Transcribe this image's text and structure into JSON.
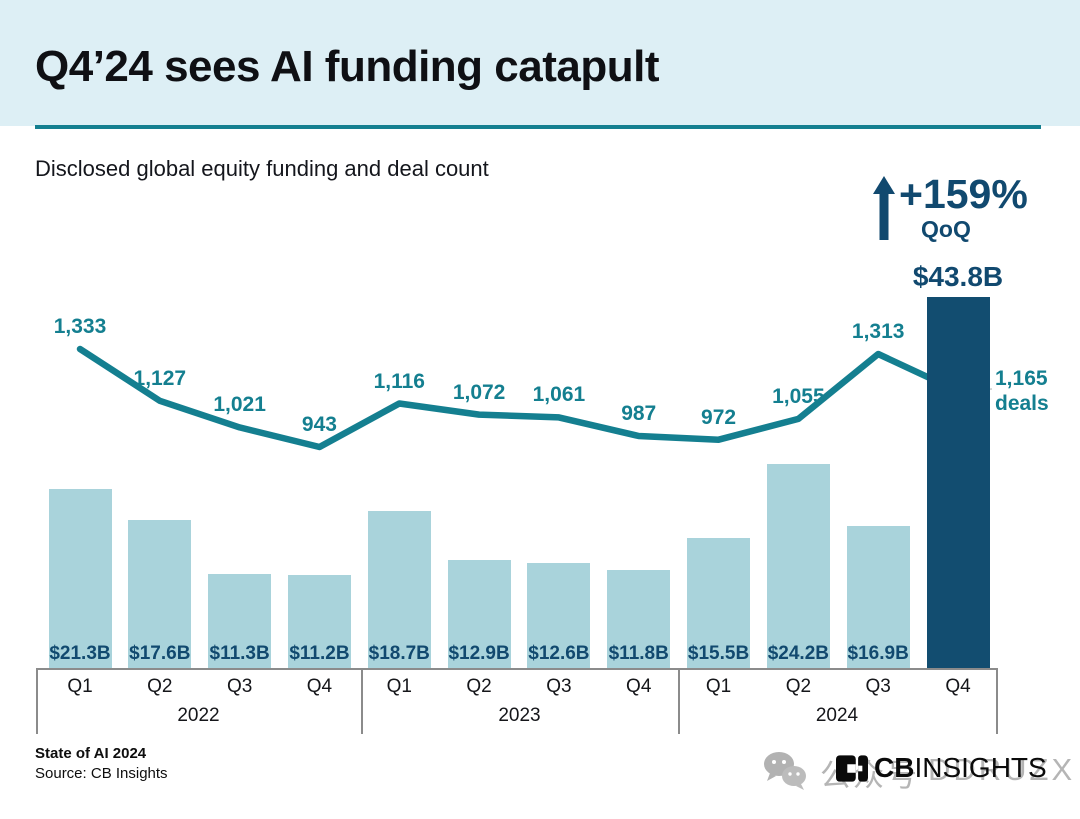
{
  "header": {
    "title": "Q4’24 sees AI funding catapult",
    "subtitle": "Disclosed global equity funding and deal count"
  },
  "callout": {
    "change": "+159%",
    "period": "QoQ",
    "peak_value": "$43.8B"
  },
  "chart_data": {
    "type": "bar+line",
    "title": "Disclosed global equity funding and deal count",
    "categories": [
      "Q1",
      "Q2",
      "Q3",
      "Q4",
      "Q1",
      "Q2",
      "Q3",
      "Q4",
      "Q1",
      "Q2",
      "Q3",
      "Q4"
    ],
    "year_groups": [
      {
        "label": "2022",
        "quarters": 4
      },
      {
        "label": "2023",
        "quarters": 4
      },
      {
        "label": "2024",
        "quarters": 4
      }
    ],
    "series": [
      {
        "name": "Disclosed equity funding ($B)",
        "type": "bar",
        "values": [
          21.3,
          17.6,
          11.3,
          11.2,
          18.7,
          12.9,
          12.6,
          11.8,
          15.5,
          24.2,
          16.9,
          43.8
        ],
        "labels": [
          "$21.3B",
          "$17.6B",
          "$11.3B",
          "$11.2B",
          "$18.7B",
          "$12.9B",
          "$12.6B",
          "$11.8B",
          "$15.5B",
          "$24.2B",
          "$16.9B",
          null
        ],
        "highlight_index": 11,
        "highlight_label": "$43.8B"
      },
      {
        "name": "Deal count",
        "type": "line",
        "values": [
          1333,
          1127,
          1021,
          943,
          1116,
          1072,
          1061,
          987,
          972,
          1055,
          1313,
          1165
        ],
        "labels": [
          "1,333",
          "1,127",
          "1,021",
          "943",
          "1,116",
          "1,072",
          "1,061",
          "987",
          "972",
          "1,055",
          "1,313",
          "1,165"
        ],
        "last_label_suffix": "deals"
      }
    ],
    "qoq_change": "+159%",
    "ylim_bars": [
      0,
      45
    ],
    "grid": false,
    "legend": "none",
    "colors": {
      "bar": "#a9d3db",
      "bar_highlight": "#124d70",
      "line": "#147f90",
      "deal_label": "#147f90",
      "value_label": "#11496f",
      "header_band": "#ddeff5",
      "rule": "#147f90"
    }
  },
  "footer": {
    "report": "State of AI 2024",
    "source": "Source: CB Insights",
    "logo_bold": "CB",
    "logo_rest": "INSIGHTS"
  },
  "watermark": {
    "icon": "wechat-icon",
    "text_cn": "公众号",
    "text_code": "DDRUZX"
  }
}
